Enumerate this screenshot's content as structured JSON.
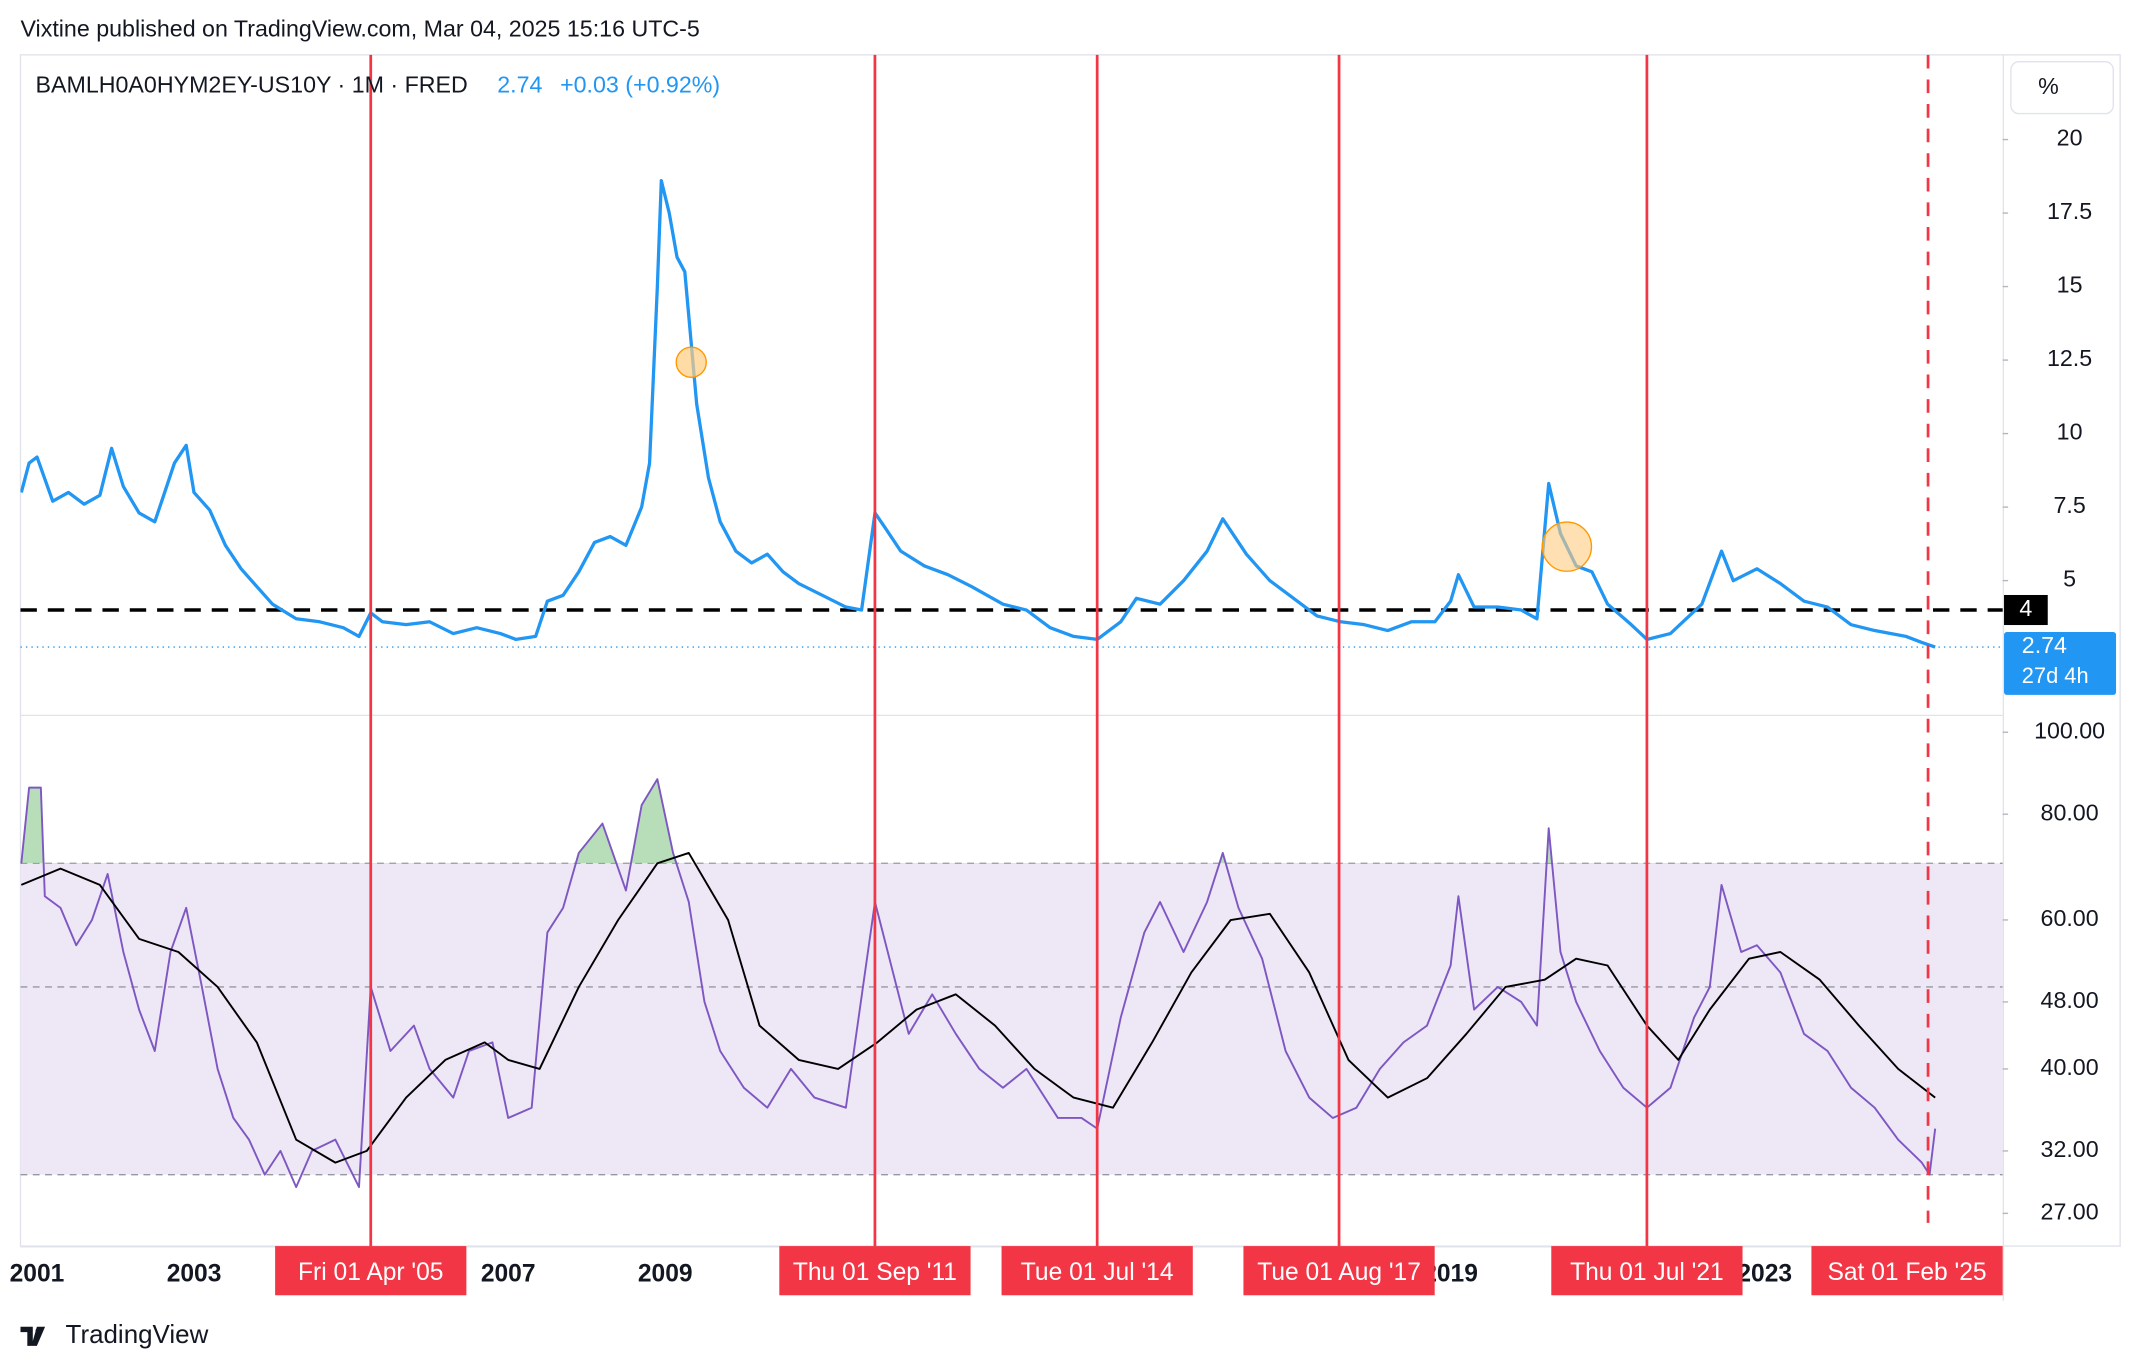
{
  "header": "Vixtine published on TradingView.com, Mar 04, 2025 15:16 UTC-5",
  "footer": "TradingView",
  "events": [
    {
      "x": 2005.25,
      "label": "Fri 01 Apr '05",
      "dashed": false
    },
    {
      "x": 2011.67,
      "label": "Thu 01 Sep '11",
      "dashed": false
    },
    {
      "x": 2014.5,
      "label": "Tue 01 Jul '14",
      "dashed": false
    },
    {
      "x": 2017.58,
      "label": "Tue 01 Aug '17",
      "dashed": false
    },
    {
      "x": 2021.5,
      "label": "Thu 01 Jul '21",
      "dashed": false
    },
    {
      "x": 2025.08,
      "label": "Sat 01 Feb '25",
      "dashed": true
    }
  ],
  "chart_data": [
    {
      "type": "line",
      "legend_symbol": "BAMLH0A0HYM2EY-US10Y · 1M · FRED",
      "last_value": 2.74,
      "change_label": "+0.03 (+0.92%)",
      "countdown": "27d 4h",
      "unit_label": "%",
      "hline": 4,
      "xlim": [
        2000.79,
        2026.03
      ],
      "xticks": [
        2001,
        2003,
        2007,
        2009,
        2019,
        2023
      ],
      "ylim": [
        0.44,
        22.88
      ],
      "yticks": [
        5,
        7.5,
        10,
        12.5,
        15,
        17.5,
        20
      ],
      "series": [
        {
          "color": "#2196f3",
          "x": [
            2000.8,
            2000.9,
            2001.0,
            2001.2,
            2001.4,
            2001.6,
            2001.8,
            2001.95,
            2002.1,
            2002.3,
            2002.5,
            2002.6,
            2002.75,
            2002.9,
            2003.0,
            2003.2,
            2003.4,
            2003.6,
            2003.8,
            2004.0,
            2004.3,
            2004.6,
            2004.9,
            2005.1,
            2005.25,
            2005.4,
            2005.7,
            2006.0,
            2006.3,
            2006.6,
            2006.9,
            2007.1,
            2007.35,
            2007.5,
            2007.7,
            2007.9,
            2008.1,
            2008.3,
            2008.5,
            2008.7,
            2008.8,
            2008.9,
            2008.95,
            2009.05,
            2009.15,
            2009.25,
            2009.4,
            2009.55,
            2009.7,
            2009.9,
            2010.1,
            2010.3,
            2010.5,
            2010.7,
            2011.0,
            2011.3,
            2011.5,
            2011.67,
            2011.8,
            2012.0,
            2012.3,
            2012.6,
            2012.9,
            2013.3,
            2013.6,
            2013.9,
            2014.2,
            2014.5,
            2014.8,
            2015.0,
            2015.3,
            2015.6,
            2015.9,
            2016.1,
            2016.4,
            2016.7,
            2017.0,
            2017.3,
            2017.6,
            2017.9,
            2018.2,
            2018.5,
            2018.8,
            2019.0,
            2019.1,
            2019.3,
            2019.6,
            2019.9,
            2020.1,
            2020.25,
            2020.4,
            2020.6,
            2020.8,
            2021.0,
            2021.3,
            2021.5,
            2021.8,
            2022.0,
            2022.2,
            2022.45,
            2022.6,
            2022.9,
            2023.2,
            2023.5,
            2023.8,
            2024.1,
            2024.4,
            2024.8,
            2025.0,
            2025.17
          ],
          "values": [
            8.0,
            9.0,
            9.2,
            7.7,
            8.0,
            7.6,
            7.9,
            9.5,
            8.2,
            7.3,
            7.0,
            7.8,
            9.0,
            9.6,
            8.0,
            7.4,
            6.2,
            5.4,
            4.8,
            4.2,
            3.7,
            3.6,
            3.4,
            3.1,
            3.9,
            3.6,
            3.5,
            3.6,
            3.2,
            3.4,
            3.2,
            3.0,
            3.1,
            4.3,
            4.5,
            5.3,
            6.3,
            6.5,
            6.2,
            7.5,
            9.0,
            15.0,
            18.6,
            17.5,
            16.0,
            15.5,
            11.0,
            8.5,
            7.0,
            6.0,
            5.6,
            5.9,
            5.3,
            4.9,
            4.5,
            4.1,
            4.0,
            7.3,
            6.8,
            6.0,
            5.5,
            5.2,
            4.8,
            4.2,
            4.0,
            3.4,
            3.1,
            3.0,
            3.6,
            4.4,
            4.2,
            5.0,
            6.0,
            7.1,
            5.9,
            5.0,
            4.4,
            3.8,
            3.6,
            3.5,
            3.3,
            3.6,
            3.6,
            4.3,
            5.2,
            4.1,
            4.1,
            4.0,
            3.7,
            8.3,
            6.6,
            5.5,
            5.3,
            4.2,
            3.5,
            3.0,
            3.2,
            3.7,
            4.2,
            6.0,
            5.0,
            5.4,
            4.9,
            4.3,
            4.1,
            3.5,
            3.3,
            3.1,
            2.9,
            2.74
          ]
        }
      ]
    },
    {
      "type": "line",
      "log_scale": true,
      "xlim": [
        2000.79,
        2026.03
      ],
      "ylim": [
        24.7,
        104.5
      ],
      "yticks": [
        {
          "value": 100,
          "label": "100.00"
        },
        {
          "value": 80,
          "label": "80.00"
        },
        {
          "value": 60,
          "label": "60.00"
        },
        {
          "value": 48,
          "label": "48.00"
        },
        {
          "value": 40,
          "label": "40.00"
        },
        {
          "value": 32,
          "label": "32.00"
        },
        {
          "value": 27,
          "label": "27.00"
        }
      ],
      "bands": [
        30,
        50,
        70
      ],
      "band_color": "#ede7f6",
      "series": [
        {
          "color": "#7e57c2",
          "x": [
            2000.8,
            2000.9,
            2001.05,
            2001.1,
            2001.3,
            2001.5,
            2001.7,
            2001.9,
            2002.1,
            2002.3,
            2002.5,
            2002.7,
            2002.9,
            2003.1,
            2003.3,
            2003.5,
            2003.7,
            2003.9,
            2004.1,
            2004.3,
            2004.5,
            2004.8,
            2005.1,
            2005.25,
            2005.5,
            2005.8,
            2006.0,
            2006.3,
            2006.5,
            2006.8,
            2007.0,
            2007.3,
            2007.5,
            2007.7,
            2007.9,
            2008.2,
            2008.5,
            2008.7,
            2008.9,
            2009.1,
            2009.3,
            2009.5,
            2009.7,
            2010.0,
            2010.3,
            2010.6,
            2010.9,
            2011.3,
            2011.67,
            2011.9,
            2012.1,
            2012.4,
            2012.7,
            2013.0,
            2013.3,
            2013.6,
            2014.0,
            2014.3,
            2014.5,
            2014.8,
            2015.1,
            2015.3,
            2015.6,
            2015.9,
            2016.1,
            2016.3,
            2016.6,
            2016.9,
            2017.2,
            2017.5,
            2017.8,
            2018.1,
            2018.4,
            2018.7,
            2019.0,
            2019.1,
            2019.3,
            2019.6,
            2019.9,
            2020.1,
            2020.25,
            2020.4,
            2020.6,
            2020.9,
            2021.2,
            2021.5,
            2021.8,
            2022.1,
            2022.3,
            2022.45,
            2022.7,
            2022.9,
            2023.2,
            2023.5,
            2023.8,
            2024.1,
            2024.4,
            2024.7,
            2025.0,
            2025.1,
            2025.17
          ],
          "values": [
            70,
            86,
            86,
            64,
            62,
            56,
            60,
            68,
            55,
            47,
            42,
            55,
            62,
            50,
            40,
            35,
            33,
            30,
            32,
            29,
            32,
            33,
            29,
            50,
            42,
            45,
            40,
            37,
            42,
            43,
            35,
            36,
            58,
            62,
            72,
            78,
            65,
            82,
            88,
            72,
            63,
            48,
            42,
            38,
            36,
            40,
            37,
            36,
            63,
            52,
            44,
            49,
            44,
            40,
            38,
            40,
            35,
            35,
            34,
            46,
            58,
            63,
            55,
            63,
            72,
            62,
            54,
            42,
            37,
            35,
            36,
            40,
            43,
            45,
            53,
            64,
            47,
            50,
            48,
            45,
            77,
            55,
            48,
            42,
            38,
            36,
            38,
            46,
            50,
            66,
            55,
            56,
            52,
            44,
            42,
            38,
            36,
            33,
            31,
            30,
            34
          ]
        },
        {
          "color": "#000000",
          "x": [
            2000.8,
            2001.3,
            2001.8,
            2002.3,
            2002.8,
            2003.3,
            2003.8,
            2004.3,
            2004.8,
            2005.2,
            2005.7,
            2006.2,
            2006.7,
            2007.0,
            2007.4,
            2007.9,
            2008.4,
            2008.9,
            2009.3,
            2009.8,
            2010.2,
            2010.7,
            2011.2,
            2011.7,
            2012.2,
            2012.7,
            2013.2,
            2013.7,
            2014.2,
            2014.7,
            2015.2,
            2015.7,
            2016.2,
            2016.7,
            2017.2,
            2017.7,
            2018.2,
            2018.7,
            2019.2,
            2019.7,
            2020.2,
            2020.6,
            2021.0,
            2021.5,
            2021.9,
            2022.3,
            2022.8,
            2023.2,
            2023.7,
            2024.2,
            2024.7,
            2025.17
          ],
          "values": [
            66,
            69,
            66,
            57,
            55,
            50,
            43,
            33,
            31,
            32,
            37,
            41,
            43,
            41,
            40,
            50,
            60,
            70,
            72,
            60,
            45,
            41,
            40,
            43,
            47,
            49,
            45,
            40,
            37,
            36,
            43,
            52,
            60,
            61,
            52,
            41,
            37,
            39,
            44,
            50,
            51,
            54,
            53,
            45,
            41,
            47,
            54,
            55,
            51,
            45,
            40,
            37
          ]
        }
      ]
    }
  ]
}
